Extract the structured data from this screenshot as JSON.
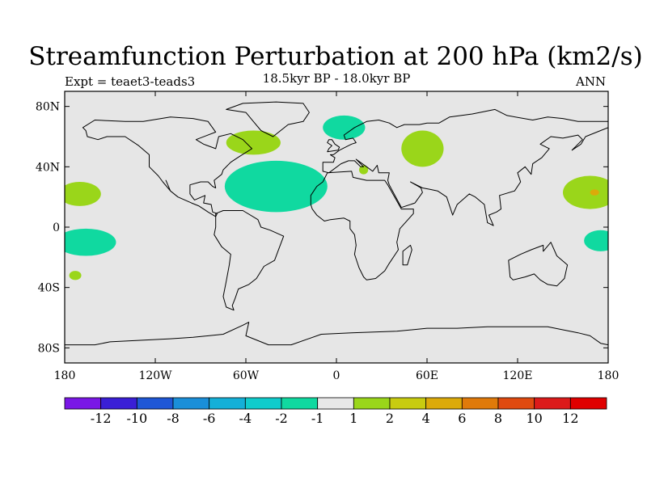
{
  "title": "Streamfunction Perturbation at 200 hPa (km2/s)",
  "subtitle": "18.5kyr BP - 18.0kyr BP",
  "expt_label": "Expt = teaet3-teads3",
  "season": "ANN",
  "colors": {
    "land_fill": "#e6e6e6",
    "coastline": "#000000",
    "frame": "#000000"
  },
  "lat_ticks": [
    {
      "lat": 80,
      "label": "80N"
    },
    {
      "lat": 40,
      "label": "40N"
    },
    {
      "lat": 0,
      "label": "0"
    },
    {
      "lat": -40,
      "label": "40S"
    },
    {
      "lat": -80,
      "label": "80S"
    }
  ],
  "lon_ticks": [
    {
      "lon": -180,
      "label": "180"
    },
    {
      "lon": -120,
      "label": "120W"
    },
    {
      "lon": -60,
      "label": "60W"
    },
    {
      "lon": 0,
      "label": "0"
    },
    {
      "lon": 60,
      "label": "60E"
    },
    {
      "lon": 120,
      "label": "120E"
    },
    {
      "lon": 180,
      "label": "180"
    }
  ],
  "colorbar": {
    "colors": [
      "#7a17e6",
      "#3a1fd6",
      "#1f57d6",
      "#1a8fd9",
      "#14b0d8",
      "#10cccc",
      "#10d9a0",
      "#e8e8e8",
      "#9ad61a",
      "#c8cc10",
      "#dcaa0a",
      "#e07a0a",
      "#e04a10",
      "#dc1a1a",
      "#e00000"
    ],
    "labels": [
      "-12",
      "-10",
      "-8",
      "-6",
      "-4",
      "-2",
      "-1",
      "1",
      "2",
      "4",
      "6",
      "8",
      "10",
      "12"
    ]
  },
  "anomalies": [
    {
      "sign": "negative",
      "level": "-2",
      "color": "#10d9a0",
      "lon": -40,
      "lat": 27,
      "dlon": 34,
      "dlat": 17
    },
    {
      "sign": "negative",
      "level": "-2",
      "color": "#10d9a0",
      "lon": 5,
      "lat": 66,
      "dlon": 14,
      "dlat": 8
    },
    {
      "sign": "negative",
      "level": "-2",
      "color": "#10d9a0",
      "lon": -166,
      "lat": -10,
      "dlon": 20,
      "dlat": 9
    },
    {
      "sign": "negative",
      "level": "-2",
      "color": "#10d9a0",
      "lon": 175,
      "lat": -9,
      "dlon": 11,
      "dlat": 7
    },
    {
      "sign": "positive",
      "level": "2",
      "color": "#9ad61a",
      "lon": 57,
      "lat": 52,
      "dlon": 14,
      "dlat": 12
    },
    {
      "sign": "positive",
      "level": "2",
      "color": "#9ad61a",
      "lon": -55,
      "lat": 56,
      "dlon": 18,
      "dlat": 8
    },
    {
      "sign": "positive",
      "level": "2",
      "color": "#9ad61a",
      "lon": -170,
      "lat": 22,
      "dlon": 14,
      "dlat": 8
    },
    {
      "sign": "positive",
      "level": "2",
      "color": "#9ad61a",
      "lon": 168,
      "lat": 23,
      "dlon": 18,
      "dlat": 11
    },
    {
      "sign": "positive",
      "level": "2",
      "color": "#9ad61a",
      "lon": -173,
      "lat": -32,
      "dlon": 4,
      "dlat": 3
    },
    {
      "sign": "positive",
      "level": "2",
      "color": "#9ad61a",
      "lon": 18,
      "lat": 38,
      "dlon": 3,
      "dlat": 3
    },
    {
      "sign": "positive",
      "level": "4",
      "color": "#dcaa0a",
      "lon": 171,
      "lat": 23,
      "dlon": 3,
      "dlat": 2
    }
  ],
  "landmasses": [
    {
      "name": "North America",
      "coords": [
        [
          -168,
          66
        ],
        [
          -160,
          71
        ],
        [
          -140,
          70
        ],
        [
          -128,
          70
        ],
        [
          -110,
          73
        ],
        [
          -95,
          72
        ],
        [
          -85,
          70
        ],
        [
          -80,
          63
        ],
        [
          -93,
          58
        ],
        [
          -88,
          55
        ],
        [
          -80,
          52
        ],
        [
          -78,
          60
        ],
        [
          -70,
          62
        ],
        [
          -62,
          58
        ],
        [
          -56,
          52
        ],
        [
          -64,
          47
        ],
        [
          -70,
          43
        ],
        [
          -75,
          38
        ],
        [
          -76,
          35
        ],
        [
          -81,
          31
        ],
        [
          -80,
          26
        ],
        [
          -82,
          27
        ],
        [
          -85,
          30
        ],
        [
          -90,
          30
        ],
        [
          -97,
          28
        ],
        [
          -97,
          22
        ],
        [
          -94,
          18
        ],
        [
          -87,
          21
        ],
        [
          -88,
          16
        ],
        [
          -83,
          15
        ],
        [
          -82,
          10
        ],
        [
          -79,
          9
        ],
        [
          -80,
          7
        ],
        [
          -85,
          10
        ],
        [
          -91,
          14
        ],
        [
          -96,
          16
        ],
        [
          -105,
          20
        ],
        [
          -110,
          24
        ],
        [
          -113,
          31
        ],
        [
          -110,
          24
        ],
        [
          -115,
          30
        ],
        [
          -118,
          34
        ],
        [
          -124,
          40
        ],
        [
          -124,
          48
        ],
        [
          -131,
          54
        ],
        [
          -140,
          60
        ],
        [
          -152,
          60
        ],
        [
          -158,
          58
        ],
        [
          -165,
          60
        ],
        [
          -166,
          64
        ]
      ]
    },
    {
      "name": "Greenland",
      "coords": [
        [
          -73,
          78
        ],
        [
          -62,
          82
        ],
        [
          -40,
          83
        ],
        [
          -22,
          82
        ],
        [
          -18,
          76
        ],
        [
          -22,
          70
        ],
        [
          -32,
          68
        ],
        [
          -42,
          60
        ],
        [
          -50,
          64
        ],
        [
          -55,
          70
        ],
        [
          -60,
          76
        ]
      ]
    },
    {
      "name": "South America",
      "coords": [
        [
          -80,
          9
        ],
        [
          -75,
          11
        ],
        [
          -62,
          11
        ],
        [
          -52,
          5
        ],
        [
          -50,
          0
        ],
        [
          -44,
          -2
        ],
        [
          -35,
          -6
        ],
        [
          -38,
          -14
        ],
        [
          -41,
          -22
        ],
        [
          -48,
          -26
        ],
        [
          -53,
          -34
        ],
        [
          -58,
          -38
        ],
        [
          -65,
          -41
        ],
        [
          -67,
          -47
        ],
        [
          -69,
          -52
        ],
        [
          -68,
          -55
        ],
        [
          -73,
          -53
        ],
        [
          -75,
          -46
        ],
        [
          -73,
          -36
        ],
        [
          -71,
          -25
        ],
        [
          -70,
          -18
        ],
        [
          -76,
          -13
        ],
        [
          -81,
          -5
        ],
        [
          -80,
          0
        ]
      ]
    },
    {
      "name": "Eurasia",
      "coords": [
        [
          -9,
          43
        ],
        [
          -9,
          37
        ],
        [
          -5,
          36
        ],
        [
          3,
          42
        ],
        [
          8,
          44
        ],
        [
          12,
          44
        ],
        [
          16,
          40
        ],
        [
          18,
          40
        ],
        [
          13,
          45
        ],
        [
          20,
          40
        ],
        [
          24,
          37
        ],
        [
          27,
          41
        ],
        [
          28,
          36
        ],
        [
          35,
          36
        ],
        [
          34,
          31
        ],
        [
          35,
          28
        ],
        [
          43,
          13
        ],
        [
          52,
          16
        ],
        [
          57,
          23
        ],
        [
          56,
          26
        ],
        [
          49,
          30
        ],
        [
          57,
          26
        ],
        [
          62,
          25
        ],
        [
          67,
          24
        ],
        [
          73,
          20
        ],
        [
          77,
          8
        ],
        [
          80,
          15
        ],
        [
          88,
          22
        ],
        [
          92,
          20
        ],
        [
          98,
          15
        ],
        [
          100,
          3
        ],
        [
          104,
          1
        ],
        [
          101,
          8
        ],
        [
          106,
          10
        ],
        [
          109,
          12
        ],
        [
          108,
          21
        ],
        [
          118,
          24
        ],
        [
          122,
          30
        ],
        [
          120,
          36
        ],
        [
          125,
          40
        ],
        [
          129,
          35
        ],
        [
          130,
          42
        ],
        [
          136,
          46
        ],
        [
          141,
          52
        ],
        [
          135,
          55
        ],
        [
          142,
          60
        ],
        [
          150,
          59
        ],
        [
          160,
          61
        ],
        [
          163,
          58
        ],
        [
          156,
          51
        ],
        [
          162,
          55
        ],
        [
          165,
          60
        ],
        [
          175,
          64
        ],
        [
          180,
          66
        ],
        [
          180,
          70
        ],
        [
          170,
          70
        ],
        [
          160,
          70
        ],
        [
          150,
          72
        ],
        [
          140,
          73
        ],
        [
          130,
          71
        ],
        [
          113,
          74
        ],
        [
          105,
          78
        ],
        [
          90,
          75
        ],
        [
          75,
          73
        ],
        [
          68,
          69
        ],
        [
          60,
          69
        ],
        [
          55,
          68
        ],
        [
          45,
          68
        ],
        [
          40,
          66
        ],
        [
          35,
          69
        ],
        [
          28,
          71
        ],
        [
          20,
          70
        ],
        [
          12,
          66
        ],
        [
          5,
          61
        ],
        [
          6,
          58
        ],
        [
          11,
          59
        ],
        [
          13,
          56
        ],
        [
          10,
          55
        ],
        [
          8,
          54
        ],
        [
          4,
          52
        ],
        [
          2,
          51
        ],
        [
          -2,
          48
        ],
        [
          -4,
          48
        ],
        [
          -1,
          46
        ],
        [
          -2,
          43
        ]
      ]
    },
    {
      "name": "Britain",
      "coords": [
        [
          -6,
          50
        ],
        [
          1,
          51
        ],
        [
          2,
          53
        ],
        [
          -1,
          55
        ],
        [
          -3,
          58
        ],
        [
          -5,
          58
        ],
        [
          -6,
          56
        ],
        [
          -3,
          54
        ],
        [
          -5,
          52
        ]
      ]
    },
    {
      "name": "Africa",
      "coords": [
        [
          -17,
          15
        ],
        [
          -17,
          21
        ],
        [
          -13,
          27
        ],
        [
          -9,
          30
        ],
        [
          -6,
          36
        ],
        [
          10,
          37
        ],
        [
          11,
          33
        ],
        [
          20,
          31
        ],
        [
          32,
          31
        ],
        [
          34,
          28
        ],
        [
          43,
          12
        ],
        [
          51,
          12
        ],
        [
          51,
          9
        ],
        [
          42,
          -1
        ],
        [
          40,
          -10
        ],
        [
          41,
          -15
        ],
        [
          35,
          -24
        ],
        [
          32,
          -29
        ],
        [
          26,
          -34
        ],
        [
          20,
          -35
        ],
        [
          18,
          -33
        ],
        [
          15,
          -27
        ],
        [
          12,
          -18
        ],
        [
          13,
          -12
        ],
        [
          12,
          -5
        ],
        [
          9,
          -1
        ],
        [
          9,
          4
        ],
        [
          5,
          6
        ],
        [
          -4,
          5
        ],
        [
          -8,
          4
        ],
        [
          -13,
          8
        ],
        [
          -16,
          12
        ]
      ]
    },
    {
      "name": "Madagascar",
      "coords": [
        [
          44,
          -25
        ],
        [
          47,
          -25
        ],
        [
          50,
          -15
        ],
        [
          49,
          -12
        ],
        [
          44,
          -16
        ]
      ]
    },
    {
      "name": "Australia",
      "coords": [
        [
          114,
          -22
        ],
        [
          122,
          -18
        ],
        [
          129,
          -15
        ],
        [
          137,
          -12
        ],
        [
          137,
          -16
        ],
        [
          142,
          -10
        ],
        [
          146,
          -19
        ],
        [
          153,
          -25
        ],
        [
          151,
          -34
        ],
        [
          146,
          -39
        ],
        [
          140,
          -38
        ],
        [
          135,
          -35
        ],
        [
          131,
          -31
        ],
        [
          125,
          -33
        ],
        [
          117,
          -35
        ],
        [
          115,
          -33
        ]
      ]
    },
    {
      "name": "Antarctica",
      "coords": [
        [
          -180,
          -78
        ],
        [
          -160,
          -78
        ],
        [
          -150,
          -76
        ],
        [
          -110,
          -74
        ],
        [
          -95,
          -73
        ],
        [
          -75,
          -71
        ],
        [
          -62,
          -65
        ],
        [
          -58,
          -63
        ],
        [
          -60,
          -72
        ],
        [
          -45,
          -78
        ],
        [
          -30,
          -78
        ],
        [
          -10,
          -71
        ],
        [
          10,
          -70
        ],
        [
          40,
          -69
        ],
        [
          60,
          -67
        ],
        [
          80,
          -67
        ],
        [
          100,
          -66
        ],
        [
          120,
          -66
        ],
        [
          140,
          -66
        ],
        [
          160,
          -70
        ],
        [
          168,
          -72
        ],
        [
          175,
          -77
        ],
        [
          180,
          -78
        ],
        [
          180,
          -90
        ],
        [
          -180,
          -90
        ]
      ]
    }
  ]
}
